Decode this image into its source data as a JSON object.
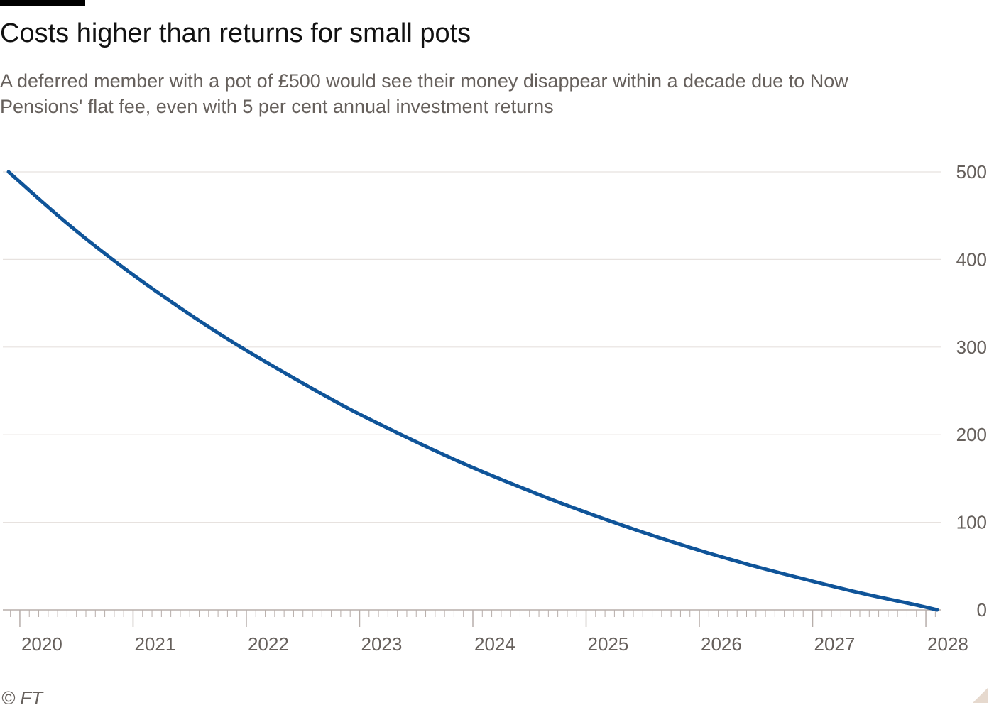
{
  "title": "Costs higher than returns for small pots",
  "subtitle": "A deferred member with a pot of £500 would see their money disappear within a decade due to Now Pensions' flat fee, even with 5 per cent annual investment returns",
  "source": "© FT",
  "colors": {
    "line": "#0f5499",
    "grid": "#e7e2df",
    "axis": "#b7aeaa",
    "text": "#66605c"
  },
  "chart_data": {
    "type": "line",
    "title": "Costs higher than returns for small pots",
    "xlabel": "",
    "ylabel": "",
    "x_tick_labels": [
      "2020",
      "2021",
      "2022",
      "2023",
      "2024",
      "2025",
      "2026",
      "2027",
      "2028"
    ],
    "y_ticks": [
      0,
      100,
      200,
      300,
      400,
      500
    ],
    "xlim": [
      2019.9,
      2028.1
    ],
    "ylim": [
      0,
      500
    ],
    "y_axis_position": "right",
    "grid": true,
    "series": [
      {
        "name": "",
        "color": "#0f5499",
        "x": [
          2019.9,
          2020.4,
          2020.9,
          2021.4,
          2021.9,
          2022.4,
          2022.9,
          2023.4,
          2023.9,
          2024.4,
          2024.9,
          2025.4,
          2025.9,
          2026.4,
          2026.9,
          2027.4,
          2027.9,
          2028.1
        ],
        "y": [
          500,
          443,
          392,
          346,
          304,
          266,
          230,
          198,
          168,
          141,
          116,
          93,
          72,
          53,
          36,
          20,
          6,
          0
        ]
      }
    ]
  }
}
